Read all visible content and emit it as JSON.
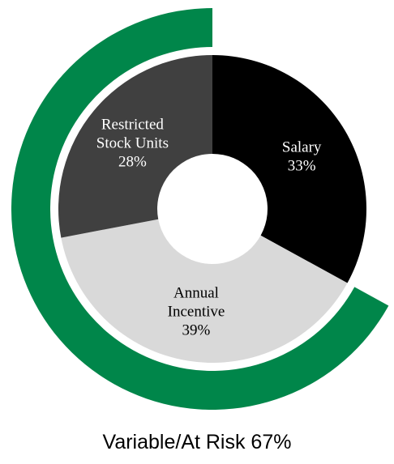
{
  "chart_data": {
    "type": "pie",
    "style": "donut",
    "slices": [
      {
        "label_lines": [
          "Salary"
        ],
        "value": 33,
        "value_label": "33%",
        "color": "#000000",
        "label_color": "#ffffff"
      },
      {
        "label_lines": [
          "Annual",
          "Incentive"
        ],
        "value": 39,
        "value_label": "39%",
        "color": "#d9d9d9",
        "label_color": "#000000"
      },
      {
        "label_lines": [
          "Restricted",
          "Stock Units"
        ],
        "value": 28,
        "value_label": "28%",
        "color": "#404040",
        "label_color": "#ffffff"
      }
    ],
    "outer_ring": {
      "label": "Variable/At Risk 67%",
      "value": 67,
      "color": "#00864a"
    }
  }
}
